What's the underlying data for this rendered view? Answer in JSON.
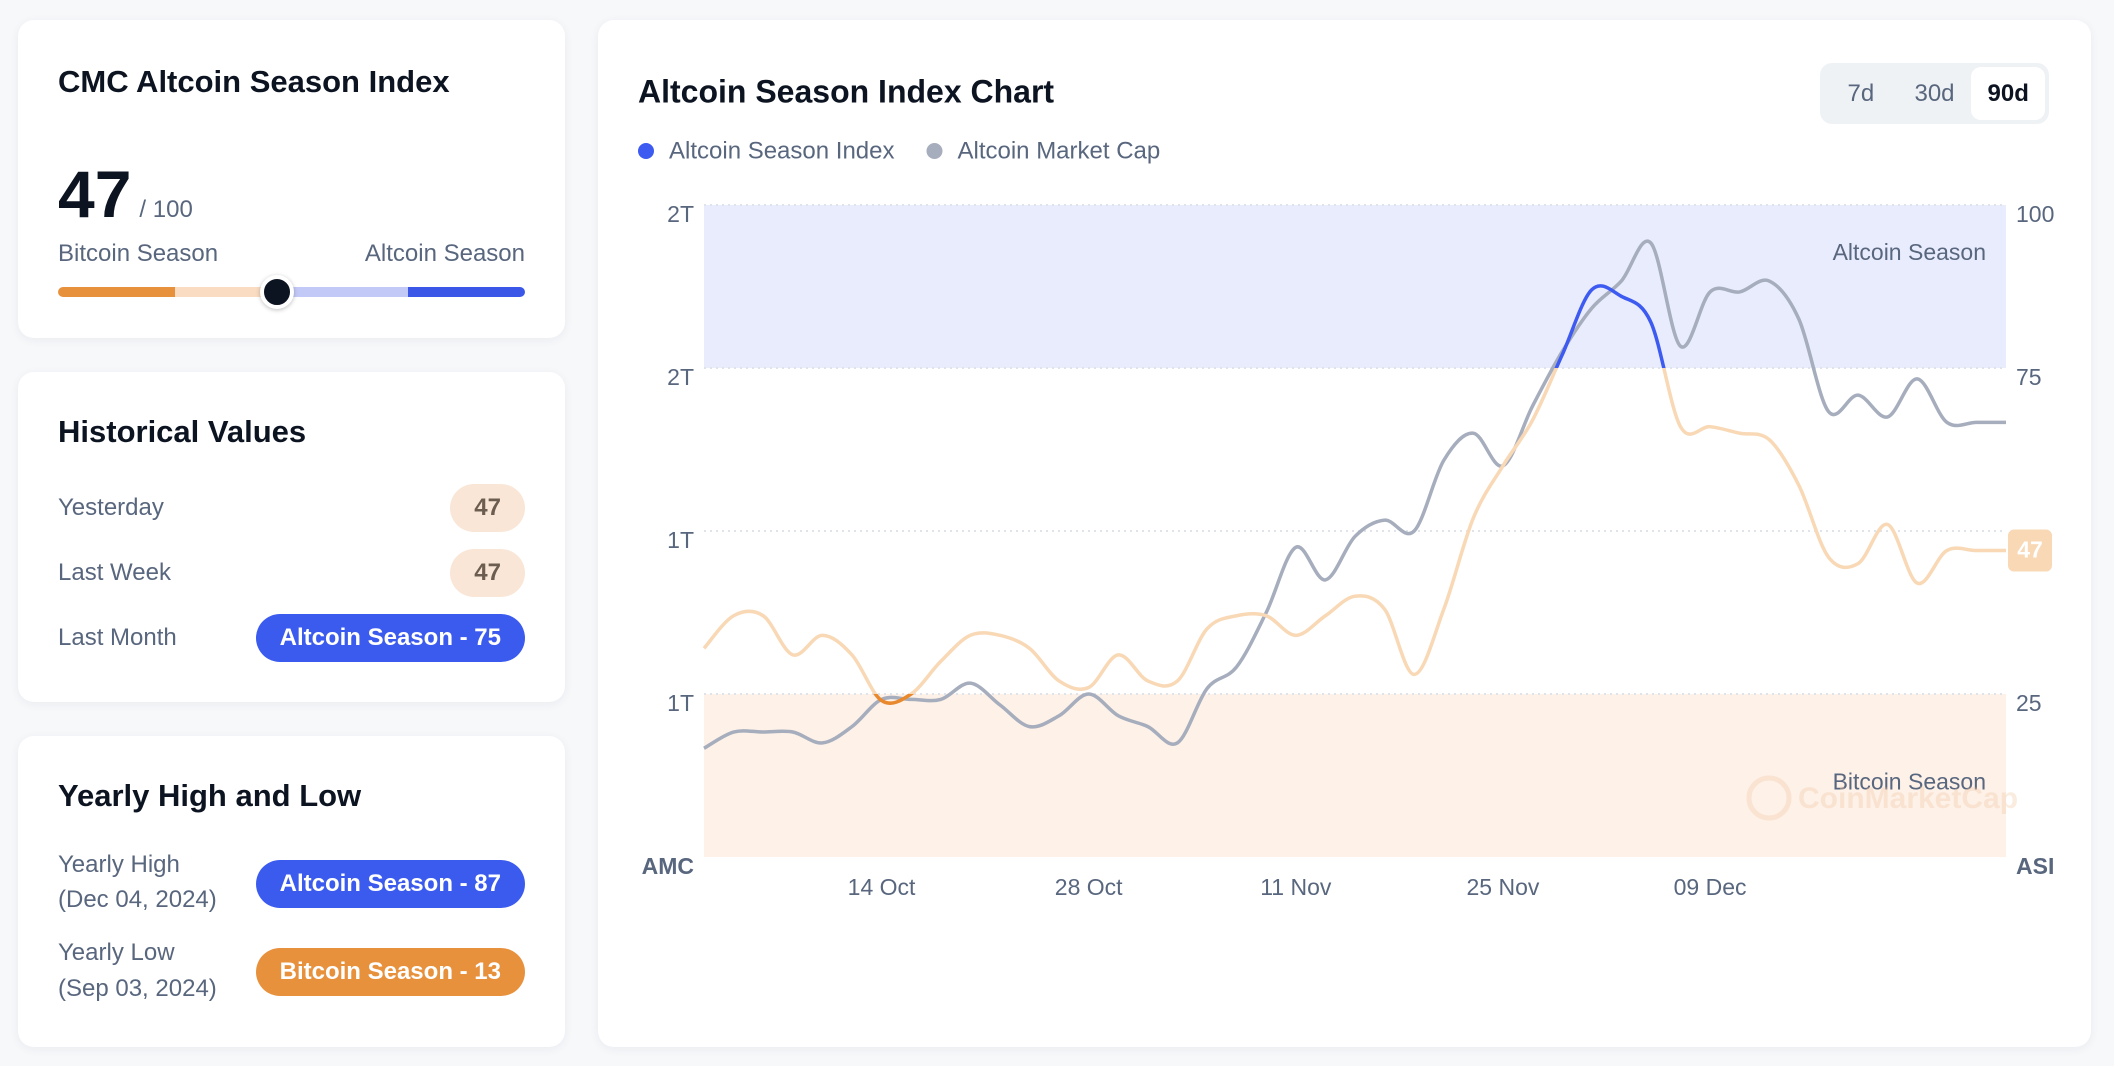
{
  "index_card": {
    "title": "CMC Altcoin Season Index",
    "value": 47,
    "max": {
      "value": 100,
      "label": "/ 100"
    },
    "left_label": "Bitcoin Season",
    "right_label": "Altcoin Season"
  },
  "historical": {
    "title": "Historical Values",
    "rows": [
      {
        "label": "Yesterday",
        "value": 47,
        "color": "#f9e6d6",
        "text_color": "#6b5d50"
      },
      {
        "label": "Last Week",
        "value": 47,
        "color": "#f9e6d6",
        "text_color": "#6b5d50"
      },
      {
        "label": "Last Month",
        "value": "Altcoin Season - 75",
        "color": "#3b5bef",
        "text_color": "#ffffff"
      }
    ]
  },
  "yearly": {
    "title": "Yearly High and Low",
    "rows": [
      {
        "label": "Yearly High",
        "date": "(Dec 04, 2024)",
        "value": "Altcoin Season - 87",
        "color": "#3b5bef",
        "text_color": "#ffffff"
      },
      {
        "label": "Yearly Low",
        "date": "(Sep 03, 2024)",
        "value": "Bitcoin Season - 13",
        "color": "#e8913d",
        "text_color": "#ffffff"
      }
    ]
  },
  "chart_card": {
    "ranges": [
      "7d",
      "30d",
      "90d"
    ],
    "selected": 2,
    "watermark": "CoinMarketCap"
  },
  "chart_data": {
    "type": "line",
    "title": "Altcoin Season Index Chart",
    "y_label": "AMC",
    "y2_label": "ASI",
    "categories": [
      null,
      null,
      null,
      null,
      null,
      null,
      "14 Oct",
      null,
      null,
      null,
      null,
      null,
      null,
      "28 Oct",
      null,
      null,
      null,
      null,
      null,
      null,
      "11 Nov",
      null,
      null,
      null,
      null,
      null,
      null,
      "25 Nov",
      null,
      null,
      null,
      null,
      null,
      null,
      "09 Dec",
      null,
      null,
      null,
      null,
      null,
      null,
      null,
      null,
      null,
      null
    ],
    "ylim": [
      0.65,
      1.85
    ],
    "yticks": [
      {
        "value": 0.95,
        "label": "1T"
      },
      {
        "value": 1.25,
        "label": "1T"
      },
      {
        "value": 1.55,
        "label": "2T"
      },
      {
        "value": 1.85,
        "label": "2T"
      }
    ],
    "y2lim": [
      0,
      100
    ],
    "y2ticks": [
      25,
      75,
      100
    ],
    "grid": true,
    "bands": [
      {
        "label": "Altcoin Season",
        "from": 75,
        "to": 100,
        "color": "#e9ecfd"
      },
      {
        "label": "Bitcoin Season",
        "from": 0,
        "to": 25,
        "color": "#fdf1e8"
      }
    ],
    "series": [
      {
        "name": "Altcoin Season Index",
        "color": "#3d5af1",
        "mid_color": "#f8d8b5",
        "low_color": "#e8892e",
        "axis": "y2",
        "values": [
          32,
          37,
          37,
          31,
          34,
          31,
          24,
          25,
          30,
          34,
          34,
          32,
          27,
          26,
          31,
          27,
          27,
          35,
          37,
          37,
          34,
          37,
          40,
          38,
          28,
          38,
          52,
          60,
          67,
          77,
          87,
          86,
          82,
          66,
          66,
          65,
          64,
          57,
          46,
          45,
          51,
          42,
          47,
          47,
          47
        ]
      },
      {
        "name": "Altcoin Market Cap",
        "color": "#a6adbd",
        "values": [
          0.85,
          0.88,
          0.88,
          0.88,
          0.86,
          0.89,
          0.94,
          0.94,
          0.94,
          0.97,
          0.93,
          0.89,
          0.91,
          0.95,
          0.91,
          0.89,
          0.86,
          0.96,
          1.0,
          1.1,
          1.22,
          1.16,
          1.24,
          1.27,
          1.25,
          1.38,
          1.43,
          1.37,
          1.48,
          1.58,
          1.66,
          1.71,
          1.78,
          1.59,
          1.69,
          1.69,
          1.71,
          1.64,
          1.47,
          1.5,
          1.46,
          1.53,
          1.45,
          1.45,
          1.45
        ]
      }
    ]
  }
}
